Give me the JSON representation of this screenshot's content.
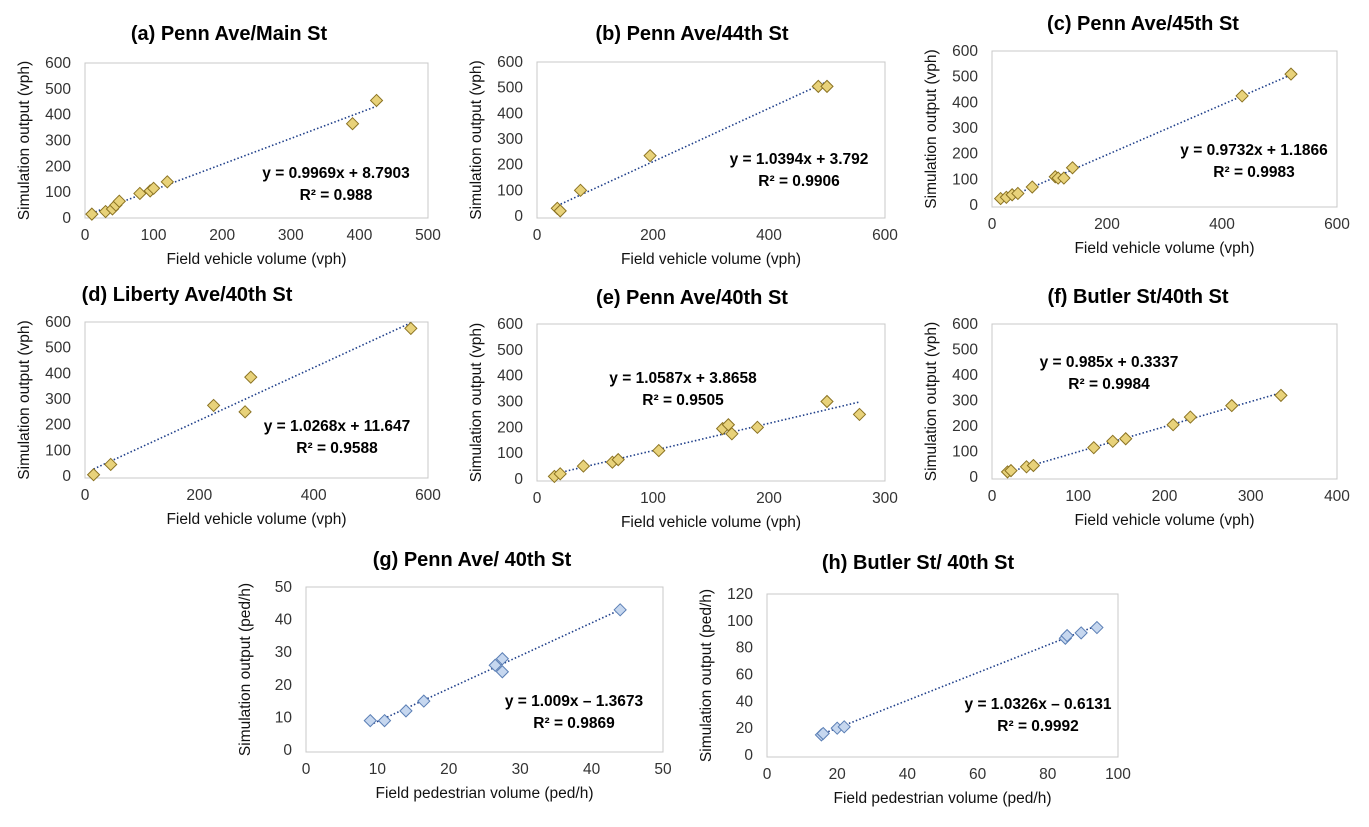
{
  "colors": {
    "vehicle_marker": "#e8d27a",
    "vehicle_edge": "#8a7222",
    "ped_marker": "#c6d7ef",
    "ped_edge": "#5b7fb5",
    "trend": "#1f3f8a",
    "frame": "#c8c8c8"
  },
  "chart_data": [
    {
      "id": "a",
      "type": "scatter",
      "title": "(a) Penn Ave/Main St",
      "xlabel": "Field vehicle volume (vph)",
      "ylabel": "Simulation output (vph)",
      "xlim": [
        0,
        500
      ],
      "ylim": [
        0,
        600
      ],
      "xticks": [
        0,
        100,
        200,
        300,
        400,
        500
      ],
      "yticks": [
        0,
        100,
        200,
        300,
        400,
        500,
        600
      ],
      "marker": "vehicle",
      "x": [
        10,
        30,
        40,
        45,
        50,
        80,
        95,
        100,
        120,
        390,
        425
      ],
      "y": [
        15,
        25,
        35,
        50,
        65,
        95,
        105,
        115,
        140,
        365,
        455
      ],
      "trendline": {
        "slope": 0.9969,
        "intercept": 8.7903,
        "x_range": [
          10,
          425
        ]
      },
      "equation": "y = 0.9969x + 8.7903",
      "r2": "R² = 0.988"
    },
    {
      "id": "b",
      "type": "scatter",
      "title": "(b) Penn Ave/44th St",
      "xlabel": "Field vehicle volume (vph)",
      "ylabel": "Simulation output (vph)",
      "xlim": [
        0,
        600
      ],
      "ylim": [
        0,
        600
      ],
      "xticks": [
        0,
        200,
        400,
        600
      ],
      "yticks": [
        0,
        100,
        200,
        300,
        400,
        500,
        600
      ],
      "marker": "vehicle",
      "x": [
        35,
        40,
        75,
        195,
        485,
        500
      ],
      "y": [
        30,
        20,
        100,
        235,
        505,
        505
      ],
      "trendline": {
        "slope": 1.0394,
        "intercept": 3.792,
        "x_range": [
          35,
          500
        ]
      },
      "equation": "y = 1.0394x + 3.792",
      "r2": "R² = 0.9906"
    },
    {
      "id": "c",
      "type": "scatter",
      "title": "(c) Penn Ave/45th St",
      "xlabel": "Field vehicle volume (vph)",
      "ylabel": "Simulation output (vph)",
      "xlim": [
        0,
        600
      ],
      "ylim": [
        0,
        600
      ],
      "xticks": [
        0,
        200,
        400,
        600
      ],
      "yticks": [
        0,
        100,
        200,
        300,
        400,
        500,
        600
      ],
      "marker": "vehicle",
      "x": [
        15,
        25,
        35,
        45,
        70,
        110,
        115,
        125,
        140,
        435,
        520
      ],
      "y": [
        25,
        30,
        40,
        45,
        70,
        110,
        105,
        105,
        145,
        425,
        510
      ],
      "trendline": {
        "slope": 0.9732,
        "intercept": 1.1866,
        "x_range": [
          15,
          520
        ]
      },
      "equation": "y = 0.9732x + 1.1866",
      "r2": "R² = 0.9983"
    },
    {
      "id": "d",
      "type": "scatter",
      "title": "(d) Liberty Ave/40th St",
      "xlabel": "Field vehicle volume (vph)",
      "ylabel": "Simulation output (vph)",
      "xlim": [
        0,
        600
      ],
      "ylim": [
        0,
        600
      ],
      "xticks": [
        0,
        200,
        400,
        600
      ],
      "yticks": [
        0,
        100,
        200,
        300,
        400,
        500,
        600
      ],
      "marker": "vehicle",
      "x": [
        15,
        45,
        225,
        280,
        290,
        570
      ],
      "y": [
        5,
        45,
        275,
        250,
        385,
        575
      ],
      "trendline": {
        "slope": 1.0268,
        "intercept": 11.647,
        "x_range": [
          15,
          570
        ]
      },
      "equation": "y = 1.0268x + 11.647",
      "r2": "R² = 0.9588"
    },
    {
      "id": "e",
      "type": "scatter",
      "title": "(e) Penn Ave/40th St",
      "xlabel": "Field vehicle volume (vph)",
      "ylabel": "Simulation output (vph)",
      "xlim": [
        0,
        300
      ],
      "ylim": [
        0,
        600
      ],
      "xticks": [
        0,
        100,
        200,
        300
      ],
      "yticks": [
        0,
        100,
        200,
        300,
        400,
        500,
        600
      ],
      "marker": "vehicle",
      "x": [
        15,
        20,
        40,
        65,
        70,
        105,
        160,
        165,
        168,
        190,
        250,
        278
      ],
      "y": [
        10,
        20,
        50,
        65,
        75,
        110,
        195,
        210,
        175,
        200,
        300,
        250
      ],
      "trendline": {
        "slope": 1.0587,
        "intercept": 3.8658,
        "x_range": [
          15,
          278
        ]
      },
      "equation": "y = 1.0587x + 3.8658",
      "r2": "R² = 0.9505"
    },
    {
      "id": "f",
      "type": "scatter",
      "title": "(f) Butler St/40th St",
      "xlabel": "Field vehicle volume (vph)",
      "ylabel": "Simulation output (vph)",
      "xlim": [
        0,
        400
      ],
      "ylim": [
        0,
        600
      ],
      "xticks": [
        0,
        100,
        200,
        300,
        400
      ],
      "yticks": [
        0,
        100,
        200,
        300,
        400,
        500,
        600
      ],
      "marker": "vehicle",
      "x": [
        18,
        22,
        40,
        48,
        118,
        140,
        155,
        210,
        230,
        278,
        335
      ],
      "y": [
        20,
        25,
        40,
        45,
        115,
        140,
        150,
        205,
        235,
        280,
        320
      ],
      "trendline": {
        "slope": 0.985,
        "intercept": 0.3337,
        "x_range": [
          18,
          335
        ]
      },
      "equation": "y = 0.985x + 0.3337",
      "r2": "R² = 0.9984"
    },
    {
      "id": "g",
      "type": "scatter",
      "title": "(g) Penn Ave/ 40th St",
      "xlabel": "Field pedestrian volume (ped/h)",
      "ylabel": "Simulation output (ped/h)",
      "xlim": [
        0,
        50
      ],
      "ylim": [
        0,
        50
      ],
      "xticks": [
        0,
        10,
        20,
        30,
        40,
        50
      ],
      "yticks": [
        0,
        10,
        20,
        30,
        40,
        50
      ],
      "marker": "ped",
      "x": [
        9,
        11,
        14,
        16.5,
        26.5,
        27.5,
        27.5,
        44
      ],
      "y": [
        9,
        9,
        12,
        15,
        26,
        28,
        24,
        43
      ],
      "trendline": {
        "slope": 1.009,
        "intercept": -1.3673,
        "x_range": [
          9,
          44
        ]
      },
      "equation": "y = 1.009x – 1.3673",
      "r2": "R² = 0.9869"
    },
    {
      "id": "h",
      "type": "scatter",
      "title": "(h) Butler St/ 40th St",
      "xlabel": "Field pedestrian volume (ped/h)",
      "ylabel": "Simulation output (ped/h)",
      "xlim": [
        0,
        100
      ],
      "ylim": [
        0,
        120
      ],
      "xticks": [
        0,
        20,
        40,
        60,
        80,
        100
      ],
      "yticks": [
        0,
        20,
        40,
        60,
        80,
        100,
        120
      ],
      "marker": "ped",
      "x": [
        15.5,
        16,
        20,
        22,
        85,
        85.5,
        89.5,
        94
      ],
      "y": [
        15,
        16,
        20,
        21,
        87,
        89,
        91,
        95
      ],
      "trendline": {
        "slope": 1.0326,
        "intercept": -0.6131,
        "x_range": [
          15.5,
          94
        ]
      },
      "equation": "y = 1.0326x – 0.6131",
      "r2": "R² = 0.9992"
    }
  ]
}
